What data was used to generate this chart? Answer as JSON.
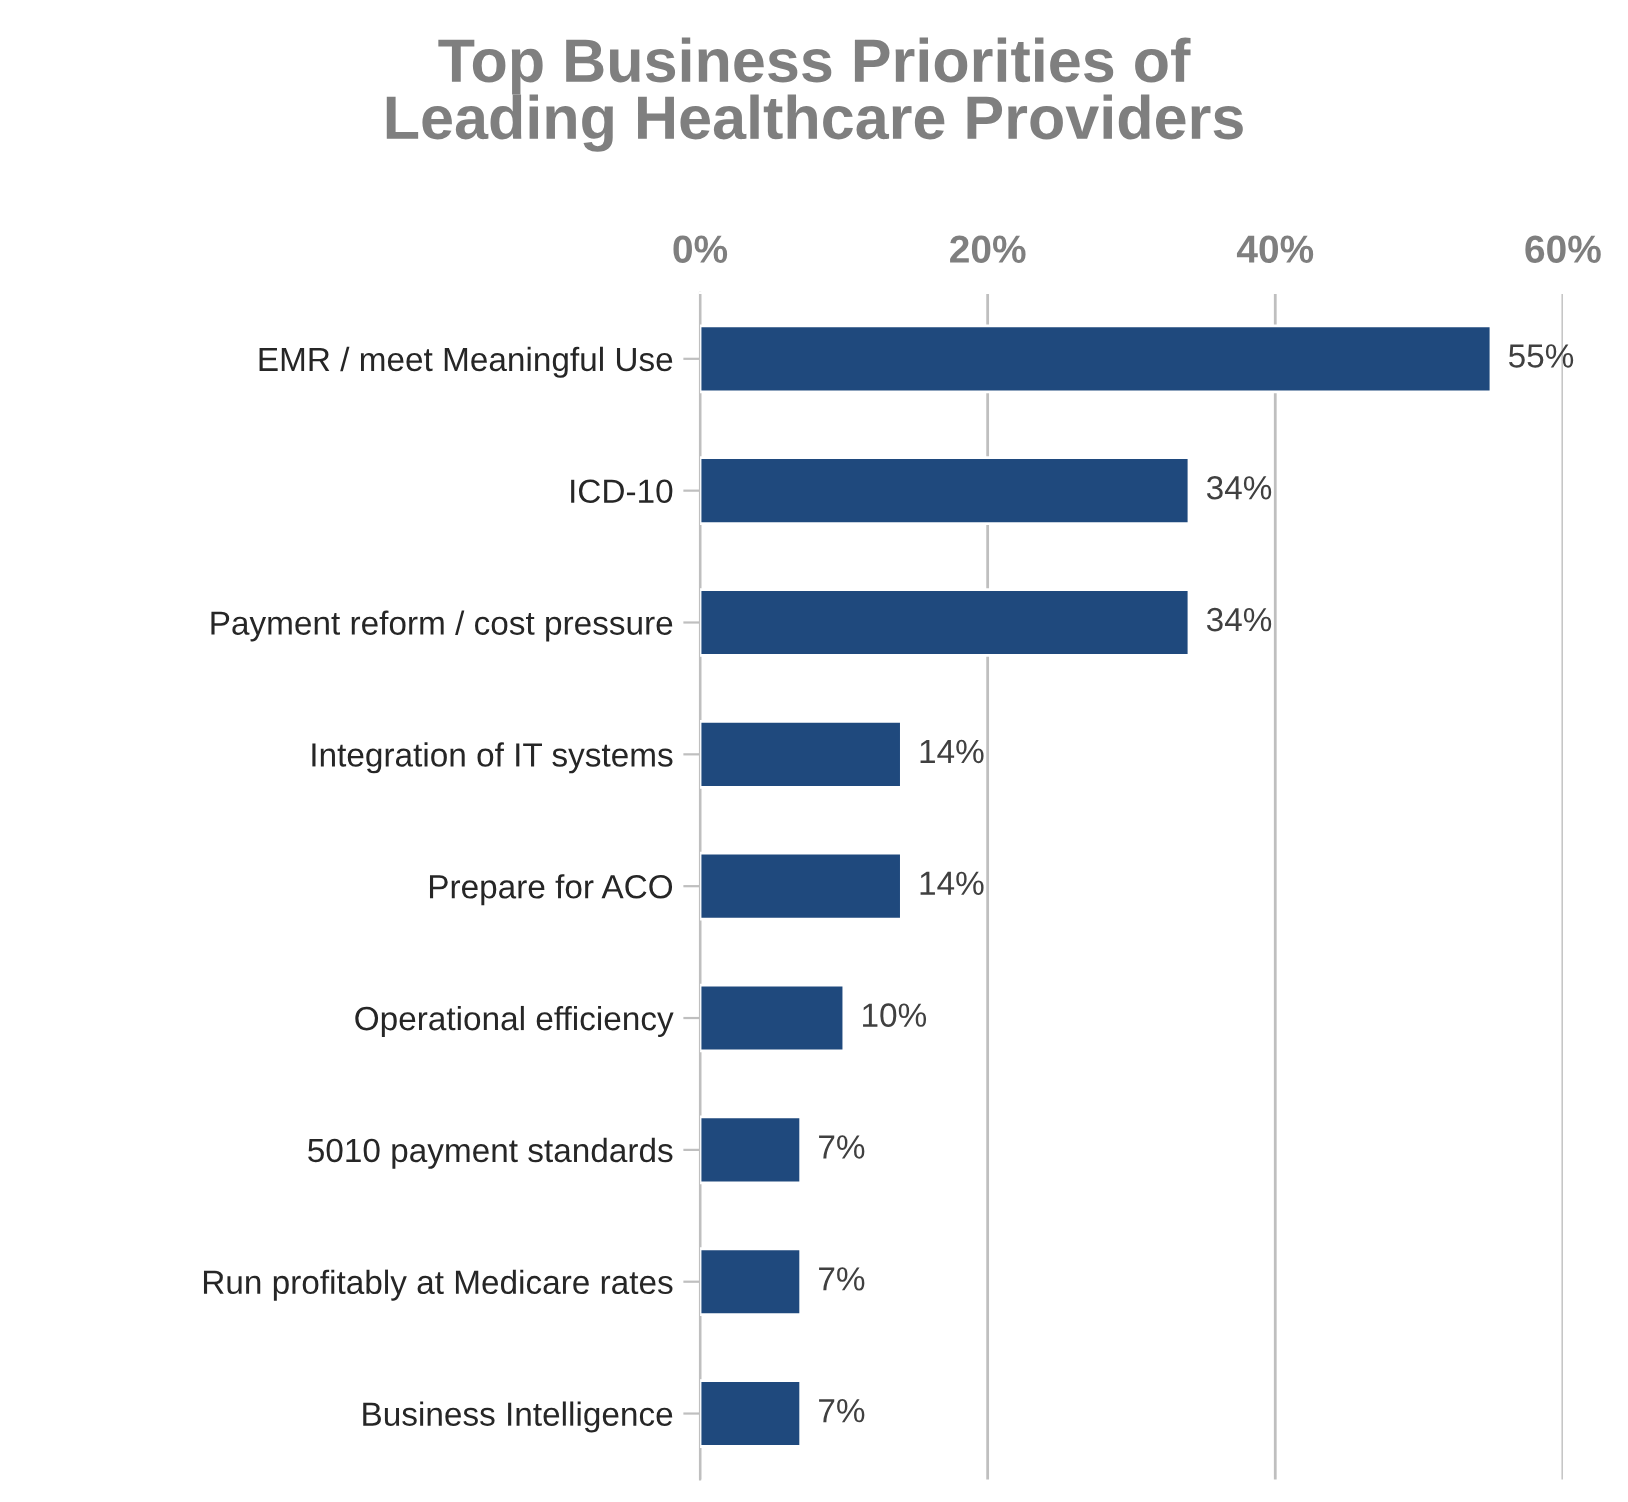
{
  "chart_data": {
    "type": "bar",
    "orientation": "horizontal",
    "title": "Top Business Priorities of\nLeading Healthcare Providers",
    "categories": [
      "EMR / meet Meaningful Use",
      "ICD-10",
      "Payment reform / cost pressure",
      "Integration of IT systems",
      "Prepare for ACO",
      "Operational efficiency",
      "5010 payment standards",
      "Run profitably at Medicare rates",
      "Business Intelligence"
    ],
    "values": [
      55,
      34,
      34,
      14,
      14,
      10,
      7,
      7,
      7
    ],
    "value_labels": [
      "55%",
      "34%",
      "34%",
      "14%",
      "14%",
      "10%",
      "7%",
      "7%",
      "7%"
    ],
    "color": "#1f497d",
    "xlim": [
      0,
      60
    ],
    "xticks": [
      {
        "value": 0,
        "label": "0%"
      },
      {
        "value": 20,
        "label": "20%"
      },
      {
        "value": 40,
        "label": "40%"
      },
      {
        "value": 60,
        "label": "60%"
      }
    ],
    "grid": "x",
    "legend": false
  }
}
